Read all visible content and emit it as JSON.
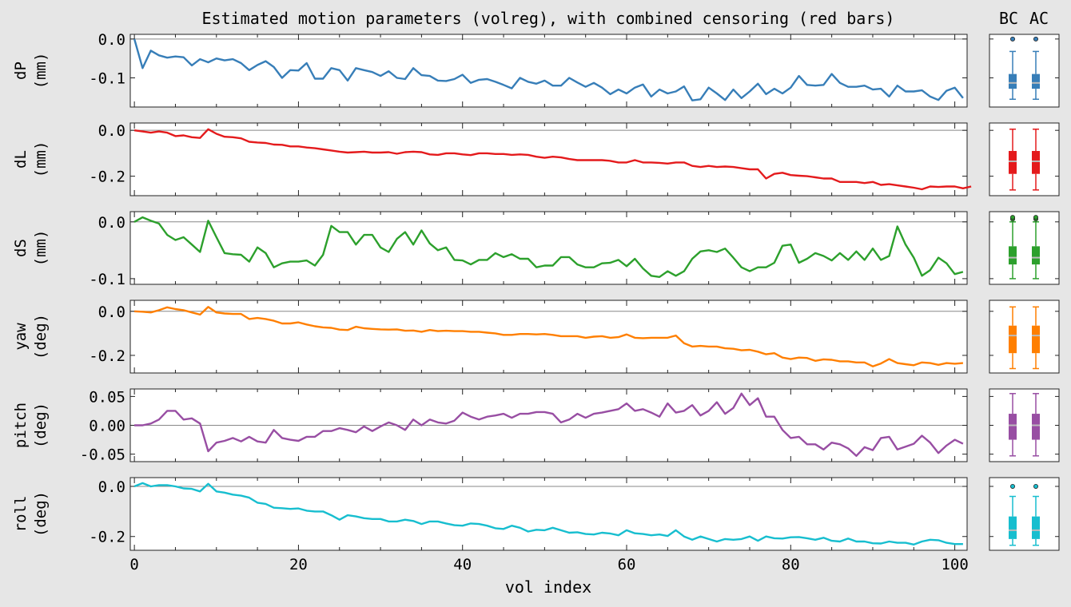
{
  "chart_data": {
    "type": "line",
    "title": "Estimated motion parameters (volreg), with combined censoring (red bars)",
    "xlabel": "vol index",
    "xlim": [
      -0.5,
      101.5
    ],
    "xticks": [
      0,
      20,
      40,
      60,
      80,
      100
    ],
    "box_labels": [
      "BC",
      "AC"
    ],
    "panels": [
      {
        "name": "dP",
        "ylabel": [
          "dP",
          "(mm)"
        ],
        "color": "#377eb8",
        "ylim": [
          -0.175,
          0.012
        ],
        "yticks": [
          0.0,
          -0.1
        ],
        "ytick_labels": [
          "0.0",
          "-0.1"
        ],
        "values": [
          0.0,
          -0.075,
          -0.03,
          -0.042,
          -0.048,
          -0.045,
          -0.047,
          -0.068,
          -0.052,
          -0.06,
          -0.05,
          -0.055,
          -0.052,
          -0.062,
          -0.08,
          -0.067,
          -0.057,
          -0.072,
          -0.1,
          -0.08,
          -0.081,
          -0.062,
          -0.102,
          -0.102,
          -0.075,
          -0.08,
          -0.107,
          -0.075,
          -0.08,
          -0.085,
          -0.095,
          -0.083,
          -0.1,
          -0.103,
          -0.075,
          -0.093,
          -0.095,
          -0.107,
          -0.108,
          -0.103,
          -0.092,
          -0.113,
          -0.105,
          -0.103,
          -0.11,
          -0.118,
          -0.127,
          -0.1,
          -0.11,
          -0.115,
          -0.107,
          -0.12,
          -0.12,
          -0.1,
          -0.112,
          -0.123,
          -0.113,
          -0.125,
          -0.142,
          -0.13,
          -0.14,
          -0.125,
          -0.117,
          -0.148,
          -0.13,
          -0.14,
          -0.135,
          -0.122,
          -0.158,
          -0.155,
          -0.125,
          -0.14,
          -0.157,
          -0.13,
          -0.152,
          -0.135,
          -0.115,
          -0.142,
          -0.128,
          -0.14,
          -0.125,
          -0.095,
          -0.118,
          -0.12,
          -0.118,
          -0.09,
          -0.113,
          -0.123,
          -0.123,
          -0.12,
          -0.13,
          -0.128,
          -0.148,
          -0.12,
          -0.135,
          -0.135,
          -0.132,
          -0.148,
          -0.157,
          -0.133,
          -0.125,
          -0.152
        ],
        "box": {
          "min": -0.155,
          "q1": -0.128,
          "median": -0.113,
          "q3": -0.09,
          "max": -0.032,
          "outliers": [
            0.0
          ]
        }
      },
      {
        "name": "dL",
        "ylabel": [
          "dL",
          "(mm)"
        ],
        "color": "#e41a1c",
        "ylim": [
          -0.285,
          0.032
        ],
        "yticks": [
          0.0,
          -0.2
        ],
        "ytick_labels": [
          "0.0",
          "-0.2"
        ],
        "values": [
          0.0,
          -0.005,
          -0.01,
          -0.005,
          -0.01,
          -0.025,
          -0.022,
          -0.03,
          -0.033,
          0.005,
          -0.015,
          -0.028,
          -0.03,
          -0.035,
          -0.05,
          -0.053,
          -0.055,
          -0.062,
          -0.063,
          -0.07,
          -0.07,
          -0.075,
          -0.078,
          -0.083,
          -0.088,
          -0.093,
          -0.097,
          -0.095,
          -0.093,
          -0.097,
          -0.097,
          -0.095,
          -0.102,
          -0.095,
          -0.093,
          -0.095,
          -0.105,
          -0.107,
          -0.1,
          -0.1,
          -0.105,
          -0.108,
          -0.1,
          -0.1,
          -0.103,
          -0.103,
          -0.107,
          -0.105,
          -0.107,
          -0.115,
          -0.12,
          -0.115,
          -0.118,
          -0.125,
          -0.13,
          -0.13,
          -0.13,
          -0.13,
          -0.133,
          -0.14,
          -0.14,
          -0.13,
          -0.14,
          -0.14,
          -0.142,
          -0.145,
          -0.14,
          -0.14,
          -0.155,
          -0.16,
          -0.155,
          -0.16,
          -0.158,
          -0.16,
          -0.165,
          -0.17,
          -0.17,
          -0.21,
          -0.19,
          -0.185,
          -0.195,
          -0.198,
          -0.2,
          -0.205,
          -0.21,
          -0.21,
          -0.225,
          -0.225,
          -0.225,
          -0.23,
          -0.225,
          -0.238,
          -0.235,
          -0.24,
          -0.245,
          -0.25,
          -0.257,
          -0.245,
          -0.247,
          -0.245,
          -0.245,
          -0.253,
          -0.245
        ],
        "box": {
          "min": -0.26,
          "q1": -0.19,
          "median": -0.135,
          "q3": -0.09,
          "max": 0.005,
          "outliers": []
        }
      },
      {
        "name": "dS",
        "ylabel": [
          "dS",
          "(mm)"
        ],
        "color": "#2ca02c",
        "ylim": [
          -0.11,
          0.018
        ],
        "yticks": [
          0.0,
          -0.1
        ],
        "ytick_labels": [
          "0.0",
          "-0.1"
        ],
        "values": [
          0.0,
          0.008,
          0.002,
          -0.003,
          -0.023,
          -0.032,
          -0.027,
          -0.04,
          -0.053,
          0.002,
          -0.027,
          -0.055,
          -0.057,
          -0.058,
          -0.07,
          -0.045,
          -0.055,
          -0.08,
          -0.073,
          -0.07,
          -0.07,
          -0.068,
          -0.077,
          -0.058,
          -0.007,
          -0.018,
          -0.018,
          -0.04,
          -0.023,
          -0.023,
          -0.045,
          -0.053,
          -0.03,
          -0.018,
          -0.04,
          -0.015,
          -0.038,
          -0.05,
          -0.045,
          -0.067,
          -0.068,
          -0.075,
          -0.067,
          -0.067,
          -0.055,
          -0.062,
          -0.057,
          -0.065,
          -0.065,
          -0.08,
          -0.077,
          -0.077,
          -0.062,
          -0.062,
          -0.075,
          -0.08,
          -0.08,
          -0.073,
          -0.072,
          -0.067,
          -0.078,
          -0.065,
          -0.082,
          -0.095,
          -0.097,
          -0.087,
          -0.095,
          -0.087,
          -0.065,
          -0.052,
          -0.05,
          -0.053,
          -0.047,
          -0.063,
          -0.08,
          -0.087,
          -0.08,
          -0.08,
          -0.072,
          -0.042,
          -0.04,
          -0.072,
          -0.065,
          -0.055,
          -0.06,
          -0.068,
          -0.055,
          -0.067,
          -0.052,
          -0.067,
          -0.047,
          -0.067,
          -0.06,
          -0.008,
          -0.04,
          -0.063,
          -0.095,
          -0.085,
          -0.063,
          -0.073,
          -0.092,
          -0.088
        ],
        "box": {
          "min": -0.1,
          "q1": -0.075,
          "median": -0.063,
          "q3": -0.043,
          "max": 0.0,
          "outliers": [
            0.005,
            0.008
          ]
        }
      },
      {
        "name": "yaw",
        "ylabel": [
          "yaw",
          "(deg)"
        ],
        "color": "#ff7f00",
        "ylim": [
          -0.28,
          0.05
        ],
        "yticks": [
          0.0,
          -0.2
        ],
        "ytick_labels": [
          "0.0",
          "-0.2"
        ],
        "values": [
          0.0,
          -0.002,
          -0.005,
          0.005,
          0.018,
          0.01,
          0.005,
          -0.005,
          -0.015,
          0.02,
          -0.005,
          -0.01,
          -0.012,
          -0.012,
          -0.035,
          -0.03,
          -0.035,
          -0.043,
          -0.055,
          -0.055,
          -0.05,
          -0.06,
          -0.068,
          -0.073,
          -0.075,
          -0.083,
          -0.085,
          -0.07,
          -0.077,
          -0.08,
          -0.082,
          -0.083,
          -0.082,
          -0.088,
          -0.087,
          -0.093,
          -0.085,
          -0.09,
          -0.088,
          -0.09,
          -0.09,
          -0.093,
          -0.093,
          -0.097,
          -0.1,
          -0.107,
          -0.107,
          -0.103,
          -0.103,
          -0.105,
          -0.103,
          -0.107,
          -0.113,
          -0.113,
          -0.113,
          -0.12,
          -0.115,
          -0.113,
          -0.12,
          -0.117,
          -0.105,
          -0.12,
          -0.122,
          -0.12,
          -0.12,
          -0.12,
          -0.11,
          -0.145,
          -0.16,
          -0.157,
          -0.16,
          -0.16,
          -0.168,
          -0.17,
          -0.177,
          -0.175,
          -0.183,
          -0.195,
          -0.19,
          -0.21,
          -0.217,
          -0.21,
          -0.212,
          -0.225,
          -0.218,
          -0.22,
          -0.227,
          -0.227,
          -0.232,
          -0.232,
          -0.25,
          -0.237,
          -0.217,
          -0.235,
          -0.24,
          -0.245,
          -0.232,
          -0.235,
          -0.243,
          -0.235,
          -0.238,
          -0.235
        ],
        "box": {
          "min": -0.26,
          "q1": -0.19,
          "median": -0.11,
          "q3": -0.065,
          "max": 0.02,
          "outliers": []
        }
      },
      {
        "name": "pitch",
        "ylabel": [
          "pitch",
          "(deg)"
        ],
        "color": "#984ea3",
        "ylim": [
          -0.063,
          0.063
        ],
        "yticks": [
          0.05,
          0.0,
          -0.05
        ],
        "ytick_labels": [
          "0.05",
          "0.00",
          "-0.05"
        ],
        "values": [
          0.0,
          0.0,
          0.003,
          0.01,
          0.025,
          0.025,
          0.01,
          0.012,
          0.003,
          -0.045,
          -0.03,
          -0.027,
          -0.022,
          -0.028,
          -0.02,
          -0.028,
          -0.03,
          -0.008,
          -0.022,
          -0.025,
          -0.027,
          -0.02,
          -0.02,
          -0.01,
          -0.01,
          -0.005,
          -0.008,
          -0.012,
          -0.002,
          -0.01,
          -0.002,
          0.005,
          0.0,
          -0.008,
          0.01,
          0.0,
          0.01,
          0.005,
          0.003,
          0.008,
          0.022,
          0.015,
          0.01,
          0.015,
          0.017,
          0.02,
          0.013,
          0.02,
          0.02,
          0.023,
          0.023,
          0.02,
          0.005,
          0.01,
          0.02,
          0.013,
          0.02,
          0.022,
          0.025,
          0.028,
          0.038,
          0.025,
          0.028,
          0.022,
          0.015,
          0.038,
          0.022,
          0.025,
          0.035,
          0.017,
          0.025,
          0.04,
          0.02,
          0.03,
          0.055,
          0.035,
          0.047,
          0.015,
          0.015,
          -0.008,
          -0.022,
          -0.02,
          -0.033,
          -0.033,
          -0.042,
          -0.03,
          -0.033,
          -0.04,
          -0.053,
          -0.038,
          -0.043,
          -0.022,
          -0.02,
          -0.042,
          -0.037,
          -0.032,
          -0.018,
          -0.03,
          -0.048,
          -0.035,
          -0.025,
          -0.032
        ],
        "box": {
          "min": -0.053,
          "q1": -0.025,
          "median": 0.0,
          "q3": 0.02,
          "max": 0.055,
          "outliers": []
        }
      },
      {
        "name": "roll",
        "ylabel": [
          "roll",
          "(deg)"
        ],
        "color": "#17becf",
        "ylim": [
          -0.255,
          0.035
        ],
        "yticks": [
          0.0,
          -0.2
        ],
        "ytick_labels": [
          "0.0",
          "-0.2"
        ],
        "values": [
          0.0,
          0.013,
          0.0,
          0.005,
          0.005,
          0.0,
          -0.008,
          -0.01,
          -0.02,
          0.01,
          -0.02,
          -0.025,
          -0.033,
          -0.037,
          -0.045,
          -0.065,
          -0.07,
          -0.085,
          -0.087,
          -0.09,
          -0.088,
          -0.097,
          -0.1,
          -0.1,
          -0.115,
          -0.133,
          -0.115,
          -0.12,
          -0.127,
          -0.13,
          -0.13,
          -0.14,
          -0.14,
          -0.133,
          -0.138,
          -0.15,
          -0.14,
          -0.14,
          -0.148,
          -0.155,
          -0.157,
          -0.148,
          -0.15,
          -0.157,
          -0.167,
          -0.17,
          -0.157,
          -0.165,
          -0.18,
          -0.173,
          -0.175,
          -0.165,
          -0.175,
          -0.185,
          -0.183,
          -0.19,
          -0.192,
          -0.185,
          -0.188,
          -0.195,
          -0.175,
          -0.187,
          -0.19,
          -0.195,
          -0.192,
          -0.198,
          -0.175,
          -0.2,
          -0.213,
          -0.2,
          -0.21,
          -0.22,
          -0.21,
          -0.213,
          -0.21,
          -0.2,
          -0.217,
          -0.2,
          -0.207,
          -0.208,
          -0.203,
          -0.202,
          -0.207,
          -0.213,
          -0.205,
          -0.217,
          -0.22,
          -0.208,
          -0.22,
          -0.22,
          -0.227,
          -0.228,
          -0.22,
          -0.225,
          -0.225,
          -0.232,
          -0.22,
          -0.213,
          -0.215,
          -0.225,
          -0.23,
          -0.23
        ],
        "box": {
          "min": -0.235,
          "q1": -0.21,
          "median": -0.175,
          "q3": -0.12,
          "max": -0.04,
          "outliers": [
            0.0
          ]
        }
      }
    ]
  }
}
